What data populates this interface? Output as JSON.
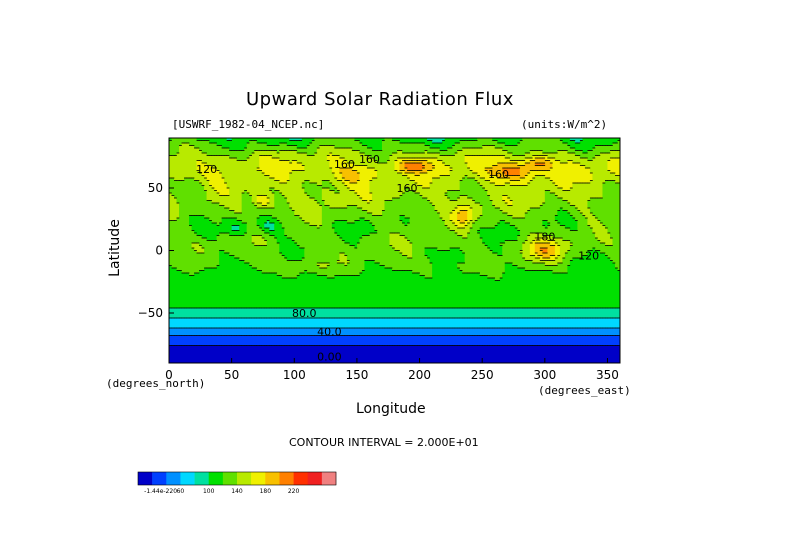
{
  "chart_data": {
    "type": "heatmap",
    "title": "Upward Solar Radiation Flux",
    "file_label": "[USWRF_1982-04_NCEP.nc]",
    "units_label": "(units:W/m^2)",
    "xlabel": "Longitude",
    "ylabel": "Latitude",
    "x_unit_label": "(degrees_east)",
    "y_unit_label": "(degrees_north)",
    "xlim": [
      0,
      360
    ],
    "ylim": [
      -90,
      90
    ],
    "x_ticks": [
      0,
      50,
      100,
      150,
      200,
      250,
      300,
      350
    ],
    "y_ticks": [
      -50,
      0,
      50
    ],
    "x_tick_labels": [
      "0",
      "50",
      "100",
      "150",
      "200",
      "250",
      "300",
      "350"
    ],
    "y_tick_labels": [
      "−50",
      "0",
      "50"
    ],
    "contour_interval_label": "CONTOUR INTERVAL = 2.000E+01",
    "contour_interval": 20,
    "contour_labels": [
      {
        "text": "120",
        "lon": 30,
        "lat": 62
      },
      {
        "text": "160",
        "lon": 140,
        "lat": 66
      },
      {
        "text": "160",
        "lon": 160,
        "lat": 70
      },
      {
        "text": "160",
        "lon": 190,
        "lat": 47
      },
      {
        "text": "160",
        "lon": 263,
        "lat": 58
      },
      {
        "text": "180",
        "lon": 300,
        "lat": 8
      },
      {
        "text": "120",
        "lon": 335,
        "lat": -7
      },
      {
        "text": "80.0",
        "lon": 108,
        "lat": -53
      },
      {
        "text": "40.0",
        "lon": 128,
        "lat": -68
      },
      {
        "text": "0.00",
        "lon": 128,
        "lat": -88
      }
    ],
    "colorbar": {
      "colors": [
        "#0000c8",
        "#0040ff",
        "#0090ff",
        "#00d8ff",
        "#00e0a0",
        "#00e000",
        "#60e000",
        "#b8ea00",
        "#f0f000",
        "#f8c000",
        "#ff8000",
        "#ff3000",
        "#f02020",
        "#f08080"
      ],
      "tick_labels": [
        "-1.44e-220",
        "60",
        "100",
        "140",
        "180",
        "220"
      ]
    },
    "zonal_profile": [
      {
        "lat": -90,
        "value": 0
      },
      {
        "lat": -80,
        "value": 10
      },
      {
        "lat": -72,
        "value": 30
      },
      {
        "lat": -64,
        "value": 50
      },
      {
        "lat": -58,
        "value": 70
      },
      {
        "lat": -52,
        "value": 85
      },
      {
        "lat": -45,
        "value": 100
      },
      {
        "lat": -35,
        "value": 110
      },
      {
        "lat": -20,
        "value": 115
      },
      {
        "lat": -5,
        "value": 125
      },
      {
        "lat": 5,
        "value": 130
      },
      {
        "lat": 15,
        "value": 125
      },
      {
        "lat": 25,
        "value": 130
      },
      {
        "lat": 35,
        "value": 140
      },
      {
        "lat": 45,
        "value": 145
      },
      {
        "lat": 55,
        "value": 150
      },
      {
        "lat": 65,
        "value": 160
      },
      {
        "lat": 75,
        "value": 150
      },
      {
        "lat": 82,
        "value": 130
      },
      {
        "lat": 90,
        "value": 110
      }
    ],
    "anomalies": [
      {
        "lon": 195,
        "lat": 68,
        "rlon": 14,
        "rlat": 5,
        "delta": 50
      },
      {
        "lon": 275,
        "lat": 63,
        "rlon": 20,
        "rlat": 8,
        "delta": 55
      },
      {
        "lon": 295,
        "lat": 70,
        "rlon": 12,
        "rlat": 5,
        "delta": 45
      },
      {
        "lon": 235,
        "lat": 28,
        "rlon": 8,
        "rlat": 9,
        "delta": 55
      },
      {
        "lon": 300,
        "lat": 0,
        "rlon": 16,
        "rlat": 10,
        "delta": 55
      },
      {
        "lon": 75,
        "lat": 40,
        "rlon": 8,
        "rlat": 6,
        "delta": 45
      },
      {
        "lon": 145,
        "lat": 60,
        "rlon": 16,
        "rlat": 8,
        "delta": 30
      },
      {
        "lon": 55,
        "lat": 18,
        "rlon": 10,
        "rlat": 7,
        "delta": -35
      },
      {
        "lon": 80,
        "lat": 20,
        "rlon": 10,
        "rlat": 6,
        "delta": -30
      },
      {
        "lon": 115,
        "lat": -12,
        "rlon": 30,
        "rlat": 6,
        "delta": 15
      },
      {
        "lon": 195,
        "lat": -10,
        "rlon": 25,
        "rlat": 8,
        "delta": 10
      },
      {
        "lon": 20,
        "lat": 48,
        "rlon": 12,
        "rlat": 8,
        "delta": -20
      }
    ]
  }
}
